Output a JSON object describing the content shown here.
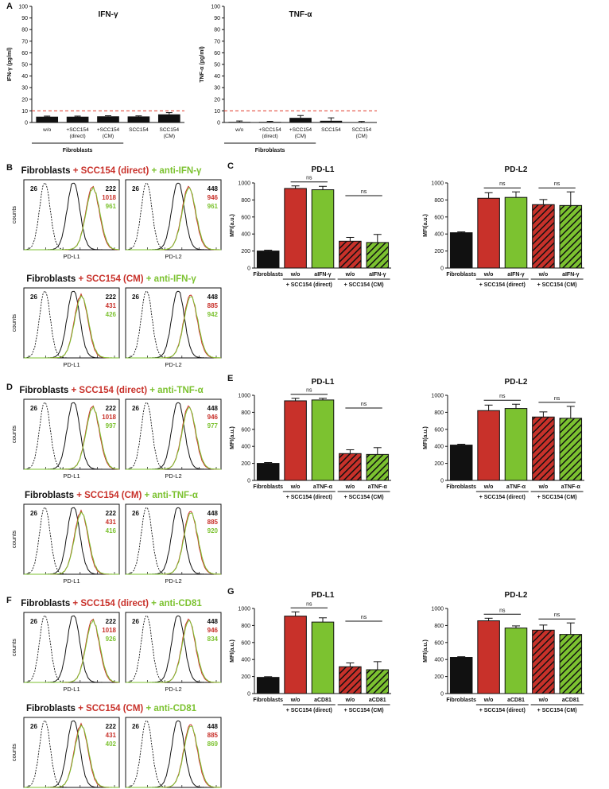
{
  "colors": {
    "red": "#c8312a",
    "green": "#7cc230",
    "black": "#111111",
    "dashed": "#e03a2a"
  },
  "panelA": {
    "letter": "A",
    "chart_data": [
      {
        "type": "bar",
        "title": "IFN-γ",
        "ylabel": "IFN-γ (pg/ml)",
        "ylim": [
          0,
          100
        ],
        "yticks": [
          "0",
          "10",
          "20",
          "30",
          "40",
          "50",
          "60",
          "70",
          "80",
          "90",
          "100"
        ],
        "categories": [
          "w/o",
          "+SCC154\n(direct)",
          "+SCC154\n(CM)",
          "SCC154",
          "SCC154\n(CM)"
        ],
        "values": [
          5,
          5,
          5.3,
          5.2,
          7
        ],
        "errors": [
          0.5,
          0.5,
          0.5,
          0.5,
          1.5
        ],
        "threshold": 10,
        "group_label": "Fibroblasts"
      },
      {
        "type": "bar",
        "title": "TNF-α",
        "ylabel": "TNF-α (pg/ml)",
        "ylim": [
          0,
          100
        ],
        "yticks": [
          "0",
          "10",
          "20",
          "30",
          "40",
          "50",
          "60",
          "70",
          "80",
          "90",
          "100"
        ],
        "categories": [
          "w/o",
          "+SCC154\n(direct)",
          "+SCC154\n(CM)",
          "SCC154",
          "SCC154\n(CM)"
        ],
        "values": [
          0.5,
          0.5,
          4,
          1.5,
          0.3
        ],
        "errors": [
          0.8,
          0.5,
          2,
          2.5,
          0.6
        ],
        "threshold": 10,
        "group_label": "Fibroblasts"
      }
    ]
  },
  "flow": [
    {
      "letter": "B",
      "rows": [
        {
          "title_black": "Fibroblasts",
          "title_red": " + SCC154 (direct)",
          "title_green": " + anti-IFN-γ",
          "pdl1": {
            "dashed": "26",
            "black": "222",
            "red": "1018",
            "green": "961"
          },
          "pdl2": {
            "dashed": "26",
            "black": "448",
            "red": "946",
            "green": "961"
          }
        },
        {
          "title_black": "Fibroblasts",
          "title_red": " + SCC154 (CM)",
          "title_green": " + anti-IFN-γ",
          "pdl1": {
            "dashed": "26",
            "black": "222",
            "red": "431",
            "green": "426"
          },
          "pdl2": {
            "dashed": "26",
            "black": "448",
            "red": "885",
            "green": "942"
          }
        }
      ]
    },
    {
      "letter": "D",
      "rows": [
        {
          "title_black": "Fibroblasts",
          "title_red": " + SCC154 (direct)",
          "title_green": " + anti-TNF-α",
          "pdl1": {
            "dashed": "26",
            "black": "222",
            "red": "1018",
            "green": "997"
          },
          "pdl2": {
            "dashed": "26",
            "black": "448",
            "red": "946",
            "green": "977"
          }
        },
        {
          "title_black": "Fibroblasts",
          "title_red": " + SCC154 (CM)",
          "title_green": " + anti-TNF-α",
          "pdl1": {
            "dashed": "26",
            "black": "222",
            "red": "431",
            "green": "416"
          },
          "pdl2": {
            "dashed": "26",
            "black": "448",
            "red": "885",
            "green": "920"
          }
        }
      ]
    },
    {
      "letter": "F",
      "rows": [
        {
          "title_black": "Fibroblasts",
          "title_red": " + SCC154 (direct)",
          "title_green": " + anti-CD81",
          "pdl1": {
            "dashed": "26",
            "black": "222",
            "red": "1018",
            "green": "926"
          },
          "pdl2": {
            "dashed": "26",
            "black": "448",
            "red": "946",
            "green": "834"
          }
        },
        {
          "title_black": "Fibroblasts",
          "title_red": " + SCC154 (CM)",
          "title_green": " + anti-CD81",
          "pdl1": {
            "dashed": "26",
            "black": "222",
            "red": "431",
            "green": "402"
          },
          "pdl2": {
            "dashed": "26",
            "black": "448",
            "red": "885",
            "green": "869"
          }
        }
      ]
    }
  ],
  "flow_labels": {
    "ylabel": "counts",
    "x_pdl1": "PD-L1",
    "x_pdl2": "PD-L2"
  },
  "mfi": [
    {
      "letter": "C",
      "treat": "aIFN-γ",
      "chart_data": [
        {
          "type": "bar",
          "title": "PD-L1",
          "ylabel": "MFI(a.u.)",
          "ylim": [
            0,
            1000
          ],
          "yticks": [
            "0",
            "200",
            "400",
            "600",
            "800",
            "1000"
          ],
          "categories": [
            "Fibroblasts",
            "w/o",
            "aIFN-γ",
            "w/o",
            "aIFN-γ"
          ],
          "values": [
            200,
            935,
            920,
            315,
            300
          ],
          "errors": [
            10,
            30,
            40,
            45,
            95
          ],
          "group1": "+ SCC154 (direct)",
          "group2": "+ SCC154 (CM)",
          "ns": [
            "ns",
            "ns"
          ]
        },
        {
          "type": "bar",
          "title": "PD-L2",
          "ylabel": "MFI(a.u.)",
          "ylim": [
            0,
            1000
          ],
          "yticks": [
            "0",
            "200",
            "400",
            "600",
            "800",
            "1000"
          ],
          "categories": [
            "Fibroblasts",
            "w/o",
            "aIFN-γ",
            "w/o",
            "aIFN-γ"
          ],
          "values": [
            415,
            820,
            830,
            745,
            735
          ],
          "errors": [
            10,
            65,
            65,
            60,
            160
          ],
          "group1": "+ SCC154 (direct)",
          "group2": "+ SCC154 (CM)",
          "ns": [
            "ns",
            "ns"
          ]
        }
      ]
    },
    {
      "letter": "E",
      "treat": "aTNF-α",
      "chart_data": [
        {
          "type": "bar",
          "title": "PD-L1",
          "ylabel": "MFI(a.u.)",
          "ylim": [
            0,
            1000
          ],
          "yticks": [
            "0",
            "200",
            "400",
            "600",
            "800",
            "1000"
          ],
          "categories": [
            "Fibroblasts",
            "w/o",
            "aTNF-α",
            "w/o",
            "aTNF-α"
          ],
          "values": [
            200,
            935,
            945,
            315,
            305
          ],
          "errors": [
            10,
            30,
            20,
            45,
            80
          ],
          "group1": "+ SCC154 (direct)",
          "group2": "+ SCC154 (CM)",
          "ns": [
            "ns",
            "ns"
          ]
        },
        {
          "type": "bar",
          "title": "PD-L2",
          "ylabel": "MFI(a.u.)",
          "ylim": [
            0,
            1000
          ],
          "yticks": [
            "0",
            "200",
            "400",
            "600",
            "800",
            "1000"
          ],
          "categories": [
            "Fibroblasts",
            "w/o",
            "aTNF-α",
            "w/o",
            "aTNF-α"
          ],
          "values": [
            415,
            820,
            845,
            745,
            730
          ],
          "errors": [
            10,
            65,
            50,
            60,
            140
          ],
          "group1": "+ SCC154 (direct)",
          "group2": "+ SCC154 (CM)",
          "ns": [
            "ns",
            "ns"
          ]
        }
      ]
    },
    {
      "letter": "G",
      "treat": "aCD81",
      "chart_data": [
        {
          "type": "bar",
          "title": "PD-L1",
          "ylabel": "MFI(a.u.)",
          "ylim": [
            0,
            1000
          ],
          "yticks": [
            "0",
            "200",
            "400",
            "600",
            "800",
            "1000"
          ],
          "categories": [
            "Fibroblasts",
            "w/o",
            "aCD81",
            "w/o",
            "aCD81"
          ],
          "values": [
            190,
            910,
            840,
            315,
            280
          ],
          "errors": [
            8,
            50,
            50,
            45,
            95
          ],
          "group1": "+ SCC154 (direct)",
          "group2": "+ SCC154 (CM)",
          "ns": [
            "ns",
            "ns"
          ]
        },
        {
          "type": "bar",
          "title": "PD-L2",
          "ylabel": "MFI(a.u.)",
          "ylim": [
            0,
            1000
          ],
          "yticks": [
            "0",
            "200",
            "400",
            "600",
            "800",
            "1000"
          ],
          "categories": [
            "Fibroblasts",
            "w/o",
            "aCD81",
            "w/o",
            "aCD81"
          ],
          "values": [
            425,
            855,
            770,
            745,
            695
          ],
          "errors": [
            8,
            30,
            25,
            60,
            135
          ],
          "group1": "+ SCC154 (direct)",
          "group2": "+ SCC154 (CM)",
          "ns": [
            "ns",
            "ns"
          ]
        }
      ]
    }
  ]
}
